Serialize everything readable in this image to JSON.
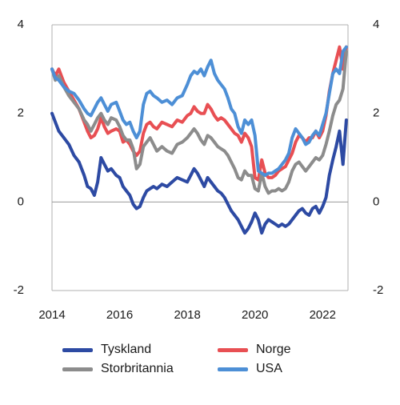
{
  "chart_data": {
    "type": "line",
    "title": "",
    "xlabel": "",
    "ylabel": "",
    "ylim": [
      -2,
      4
    ],
    "xlim": [
      2014,
      2022.75
    ],
    "x_ticks": [
      "2014",
      "2016",
      "2018",
      "2020",
      "2022"
    ],
    "y_ticks": [
      "4",
      "2",
      "0",
      "-2"
    ],
    "y_ticks_right": [
      "4",
      "2",
      "0",
      "-2"
    ],
    "grid": false,
    "zero_line": true,
    "legend_position": "bottom",
    "series": [
      {
        "name": "Tyskland",
        "color": "#2d4aa3",
        "x": [
          2014.0,
          2014.1,
          2014.2,
          2014.35,
          2014.5,
          2014.65,
          2014.8,
          2014.95,
          2015.05,
          2015.15,
          2015.25,
          2015.35,
          2015.45,
          2015.55,
          2015.65,
          2015.75,
          2015.9,
          2016.0,
          2016.1,
          2016.2,
          2016.3,
          2016.4,
          2016.5,
          2016.6,
          2016.7,
          2016.8,
          2016.9,
          2017.0,
          2017.1,
          2017.25,
          2017.4,
          2017.55,
          2017.7,
          2017.85,
          2018.0,
          2018.1,
          2018.2,
          2018.3,
          2018.4,
          2018.5,
          2018.6,
          2018.7,
          2018.8,
          2018.9,
          2019.0,
          2019.1,
          2019.2,
          2019.3,
          2019.4,
          2019.5,
          2019.6,
          2019.7,
          2019.8,
          2019.9,
          2020.0,
          2020.1,
          2020.2,
          2020.3,
          2020.4,
          2020.5,
          2020.6,
          2020.7,
          2020.8,
          2020.9,
          2021.0,
          2021.1,
          2021.2,
          2021.3,
          2021.4,
          2021.5,
          2021.6,
          2021.7,
          2021.8,
          2021.9,
          2022.0,
          2022.1,
          2022.2,
          2022.3,
          2022.4,
          2022.5,
          2022.6,
          2022.7
        ],
        "values": [
          2.0,
          1.8,
          1.6,
          1.45,
          1.3,
          1.05,
          0.9,
          0.6,
          0.35,
          0.3,
          0.15,
          0.45,
          1.0,
          0.85,
          0.7,
          0.75,
          0.6,
          0.55,
          0.35,
          0.25,
          0.15,
          -0.05,
          -0.15,
          -0.1,
          0.1,
          0.25,
          0.3,
          0.35,
          0.3,
          0.4,
          0.35,
          0.45,
          0.55,
          0.5,
          0.45,
          0.6,
          0.75,
          0.65,
          0.5,
          0.35,
          0.55,
          0.45,
          0.35,
          0.25,
          0.2,
          0.1,
          -0.05,
          -0.2,
          -0.3,
          -0.4,
          -0.55,
          -0.7,
          -0.6,
          -0.45,
          -0.25,
          -0.4,
          -0.7,
          -0.5,
          -0.4,
          -0.45,
          -0.5,
          -0.55,
          -0.5,
          -0.55,
          -0.5,
          -0.4,
          -0.3,
          -0.2,
          -0.15,
          -0.25,
          -0.3,
          -0.15,
          -0.1,
          -0.25,
          -0.1,
          0.1,
          0.6,
          0.95,
          1.25,
          1.6,
          0.85,
          1.85
        ]
      },
      {
        "name": "Norge",
        "color": "#e84f53",
        "x": [
          2014.0,
          2014.1,
          2014.2,
          2014.35,
          2014.5,
          2014.65,
          2014.8,
          2014.95,
          2015.05,
          2015.15,
          2015.25,
          2015.35,
          2015.45,
          2015.55,
          2015.65,
          2015.75,
          2015.9,
          2016.0,
          2016.1,
          2016.2,
          2016.3,
          2016.4,
          2016.5,
          2016.6,
          2016.7,
          2016.8,
          2016.9,
          2017.0,
          2017.1,
          2017.25,
          2017.4,
          2017.55,
          2017.7,
          2017.85,
          2018.0,
          2018.1,
          2018.2,
          2018.3,
          2018.4,
          2018.5,
          2018.6,
          2018.7,
          2018.8,
          2018.9,
          2019.0,
          2019.1,
          2019.2,
          2019.3,
          2019.4,
          2019.5,
          2019.6,
          2019.7,
          2019.8,
          2019.9,
          2020.0,
          2020.1,
          2020.2,
          2020.3,
          2020.4,
          2020.5,
          2020.6,
          2020.7,
          2020.8,
          2020.9,
          2021.0,
          2021.1,
          2021.2,
          2021.3,
          2021.4,
          2021.5,
          2021.6,
          2021.7,
          2021.8,
          2021.9,
          2022.0,
          2022.1,
          2022.2,
          2022.3,
          2022.4,
          2022.5,
          2022.6,
          2022.7
        ],
        "values": [
          3.0,
          2.85,
          3.0,
          2.7,
          2.5,
          2.3,
          2.1,
          1.8,
          1.6,
          1.45,
          1.5,
          1.65,
          1.9,
          1.7,
          1.55,
          1.6,
          1.65,
          1.6,
          1.35,
          1.4,
          1.3,
          1.15,
          1.05,
          1.15,
          1.55,
          1.75,
          1.8,
          1.7,
          1.65,
          1.8,
          1.75,
          1.7,
          1.85,
          1.8,
          1.95,
          2.0,
          2.15,
          2.05,
          2.0,
          2.0,
          2.2,
          2.1,
          1.95,
          1.85,
          1.9,
          1.85,
          1.75,
          1.65,
          1.55,
          1.5,
          1.35,
          1.55,
          1.45,
          1.25,
          0.55,
          0.5,
          0.95,
          0.65,
          0.55,
          0.55,
          0.6,
          0.7,
          0.75,
          0.8,
          0.95,
          1.1,
          1.35,
          1.5,
          1.45,
          1.35,
          1.45,
          1.45,
          1.6,
          1.45,
          1.6,
          1.95,
          2.5,
          2.9,
          3.2,
          3.5,
          3.0,
          3.5
        ]
      },
      {
        "name": "Storbritannia",
        "color": "#8c8c8c",
        "x": [
          2014.0,
          2014.1,
          2014.2,
          2014.35,
          2014.5,
          2014.65,
          2014.8,
          2014.95,
          2015.05,
          2015.15,
          2015.25,
          2015.35,
          2015.45,
          2015.55,
          2015.65,
          2015.75,
          2015.9,
          2016.0,
          2016.1,
          2016.2,
          2016.3,
          2016.4,
          2016.5,
          2016.6,
          2016.7,
          2016.8,
          2016.9,
          2017.0,
          2017.1,
          2017.25,
          2017.4,
          2017.55,
          2017.7,
          2017.85,
          2018.0,
          2018.1,
          2018.2,
          2018.3,
          2018.4,
          2018.5,
          2018.6,
          2018.7,
          2018.8,
          2018.9,
          2019.0,
          2019.1,
          2019.2,
          2019.3,
          2019.4,
          2019.5,
          2019.6,
          2019.7,
          2019.8,
          2019.9,
          2020.0,
          2020.1,
          2020.2,
          2020.3,
          2020.4,
          2020.5,
          2020.6,
          2020.7,
          2020.8,
          2020.9,
          2021.0,
          2021.1,
          2021.2,
          2021.3,
          2021.4,
          2021.5,
          2021.6,
          2021.7,
          2021.8,
          2021.9,
          2022.0,
          2022.1,
          2022.2,
          2022.3,
          2022.4,
          2022.5,
          2022.6,
          2022.7
        ],
        "values": [
          3.0,
          2.75,
          2.85,
          2.6,
          2.4,
          2.25,
          2.1,
          1.85,
          1.75,
          1.6,
          1.75,
          1.9,
          2.0,
          1.85,
          1.75,
          1.9,
          1.85,
          1.7,
          1.5,
          1.4,
          1.4,
          1.2,
          0.75,
          0.85,
          1.25,
          1.35,
          1.45,
          1.3,
          1.15,
          1.25,
          1.15,
          1.1,
          1.3,
          1.35,
          1.45,
          1.55,
          1.65,
          1.55,
          1.4,
          1.3,
          1.5,
          1.45,
          1.35,
          1.25,
          1.2,
          1.15,
          1.05,
          0.9,
          0.75,
          0.55,
          0.5,
          0.7,
          0.6,
          0.6,
          0.3,
          0.25,
          0.65,
          0.35,
          0.2,
          0.25,
          0.25,
          0.3,
          0.25,
          0.3,
          0.45,
          0.7,
          0.85,
          0.9,
          0.8,
          0.7,
          0.8,
          0.9,
          1.0,
          0.95,
          1.05,
          1.3,
          1.6,
          1.95,
          2.2,
          2.3,
          2.55,
          3.4
        ]
      },
      {
        "name": "USA",
        "color": "#4d8fd6",
        "x": [
          2014.0,
          2014.1,
          2014.2,
          2014.35,
          2014.5,
          2014.65,
          2014.8,
          2014.95,
          2015.05,
          2015.15,
          2015.25,
          2015.35,
          2015.45,
          2015.55,
          2015.65,
          2015.75,
          2015.9,
          2016.0,
          2016.1,
          2016.2,
          2016.3,
          2016.4,
          2016.5,
          2016.6,
          2016.7,
          2016.8,
          2016.9,
          2017.0,
          2017.1,
          2017.25,
          2017.4,
          2017.55,
          2017.7,
          2017.85,
          2018.0,
          2018.1,
          2018.2,
          2018.3,
          2018.4,
          2018.5,
          2018.6,
          2018.7,
          2018.8,
          2018.9,
          2019.0,
          2019.1,
          2019.2,
          2019.3,
          2019.4,
          2019.5,
          2019.6,
          2019.7,
          2019.8,
          2019.9,
          2020.0,
          2020.1,
          2020.2,
          2020.3,
          2020.4,
          2020.5,
          2020.6,
          2020.7,
          2020.8,
          2020.9,
          2021.0,
          2021.1,
          2021.2,
          2021.3,
          2021.4,
          2021.5,
          2021.6,
          2021.7,
          2021.8,
          2021.9,
          2022.0,
          2022.1,
          2022.2,
          2022.3,
          2022.4,
          2022.5,
          2022.6,
          2022.7
        ],
        "values": [
          3.0,
          2.8,
          2.75,
          2.6,
          2.5,
          2.45,
          2.3,
          2.1,
          2.0,
          1.95,
          2.1,
          2.25,
          2.35,
          2.2,
          2.05,
          2.2,
          2.25,
          2.05,
          1.85,
          1.75,
          1.8,
          1.6,
          1.45,
          1.6,
          2.2,
          2.45,
          2.5,
          2.4,
          2.35,
          2.25,
          2.3,
          2.2,
          2.35,
          2.4,
          2.65,
          2.85,
          2.95,
          2.9,
          3.0,
          2.85,
          3.05,
          3.2,
          2.9,
          2.75,
          2.65,
          2.55,
          2.35,
          2.1,
          2.0,
          1.7,
          1.55,
          1.85,
          1.75,
          1.85,
          1.5,
          0.7,
          0.65,
          0.6,
          0.65,
          0.65,
          0.7,
          0.75,
          0.85,
          0.95,
          1.1,
          1.45,
          1.65,
          1.55,
          1.45,
          1.3,
          1.35,
          1.5,
          1.6,
          1.5,
          1.75,
          2.0,
          2.45,
          2.9,
          3.0,
          2.9,
          3.4,
          3.5
        ]
      }
    ]
  }
}
